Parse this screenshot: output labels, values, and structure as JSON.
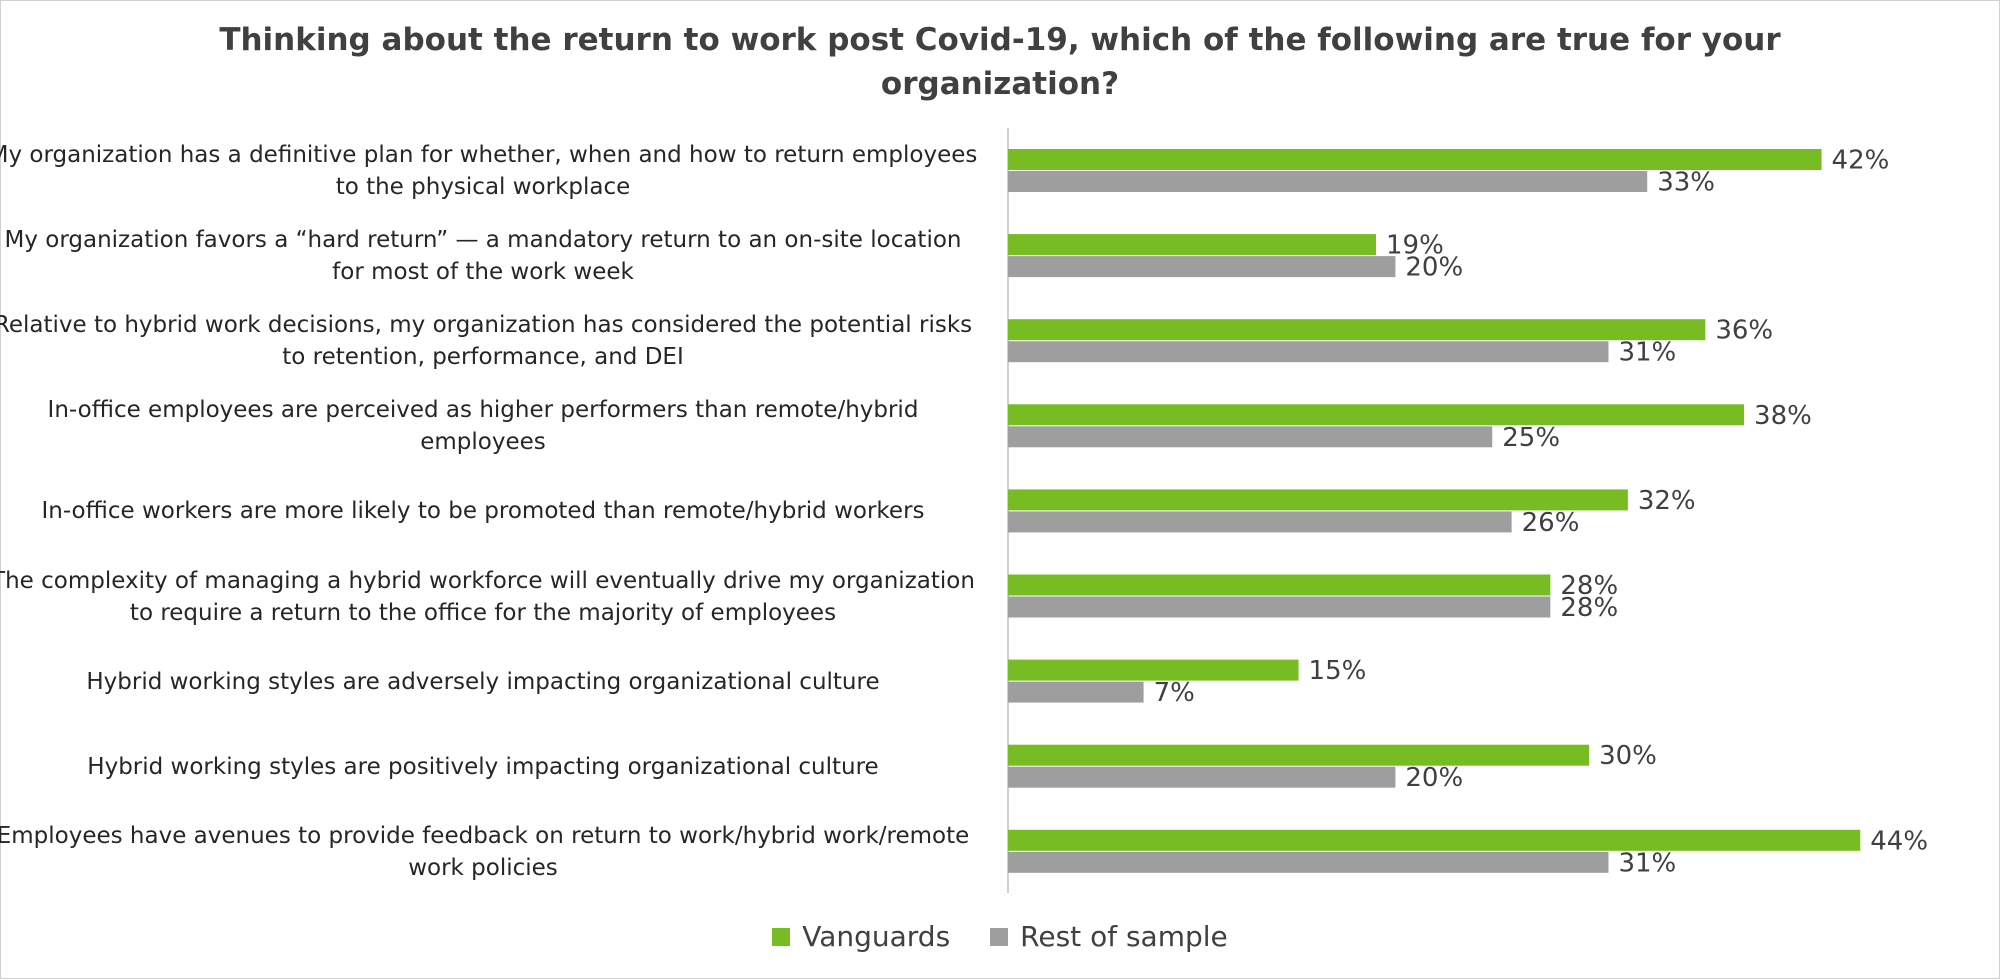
{
  "chart_data": {
    "type": "hbar",
    "title": "Thinking about the return to work post Covid-19, which of the following are true for your organization?",
    "categories": [
      "My organization has a definitive plan for whether, when and how to return employees to the physical workplace",
      "My organization favors a “hard return” — a mandatory return to an on-site location for most of the work week",
      "Relative to hybrid work decisions, my organization has considered the potential risks to retention, performance, and DEI",
      "In-office employees are perceived as higher performers than remote/hybrid employees",
      "In-office workers are more likely to be promoted than remote/hybrid workers",
      "The complexity of managing a hybrid workforce will eventually drive my organization to require a return to the office for the majority of employees",
      "Hybrid working styles are adversely impacting organizational culture",
      "Hybrid working styles are positively impacting organizational culture",
      "Employees have avenues to provide feedback on return to work/hybrid work/remote work policies"
    ],
    "series": [
      {
        "name": "Vanguards",
        "color": "#77bc22",
        "values": [
          42,
          19,
          36,
          38,
          32,
          28,
          15,
          30,
          44
        ],
        "value_labels": [
          "42%",
          "19%",
          "36%",
          "38%",
          "32%",
          "28%",
          "15%",
          "30%",
          "44%"
        ]
      },
      {
        "name": "Rest of sample",
        "color": "#9e9e9e",
        "values": [
          33,
          20,
          31,
          25,
          26,
          28,
          7,
          20,
          31
        ],
        "value_labels": [
          "33%",
          "20%",
          "31%",
          "25%",
          "26%",
          "28%",
          "7%",
          "20%",
          "31%"
        ]
      }
    ],
    "legend": "bottom"
  }
}
